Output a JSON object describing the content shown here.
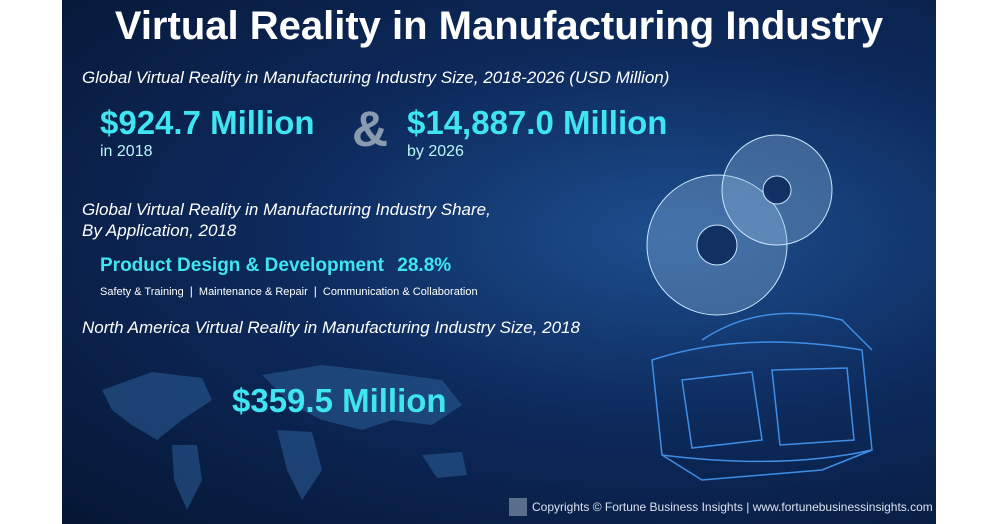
{
  "header": {
    "title": "Virtual Reality in Manufacturing Industry"
  },
  "size_section": {
    "heading": "Global Virtual Reality in Manufacturing Industry Size, 2018-2026 (USD Million)",
    "start": {
      "value": "$924.7 Million",
      "caption": "in 2018"
    },
    "joiner": "&",
    "end": {
      "value": "$14,887.0 Million",
      "caption": "by 2026"
    }
  },
  "share_section": {
    "heading_lines": [
      "Global Virtual Reality in Manufacturing Industry Share,",
      "By Application, 2018"
    ],
    "leader": {
      "name": "Product Design & Development",
      "share": "28.8%"
    },
    "others": [
      "Safety & Training",
      "Maintenance & Repair",
      "Communication & Collaboration"
    ]
  },
  "region_section": {
    "heading": "North America Virtual Reality in Manufacturing Industry Size, 2018",
    "value": "$359.5 Million"
  },
  "footer": {
    "copyright": "Copyrights © Fortune Business Insights | www.fortunebusinessinsights.com"
  }
}
